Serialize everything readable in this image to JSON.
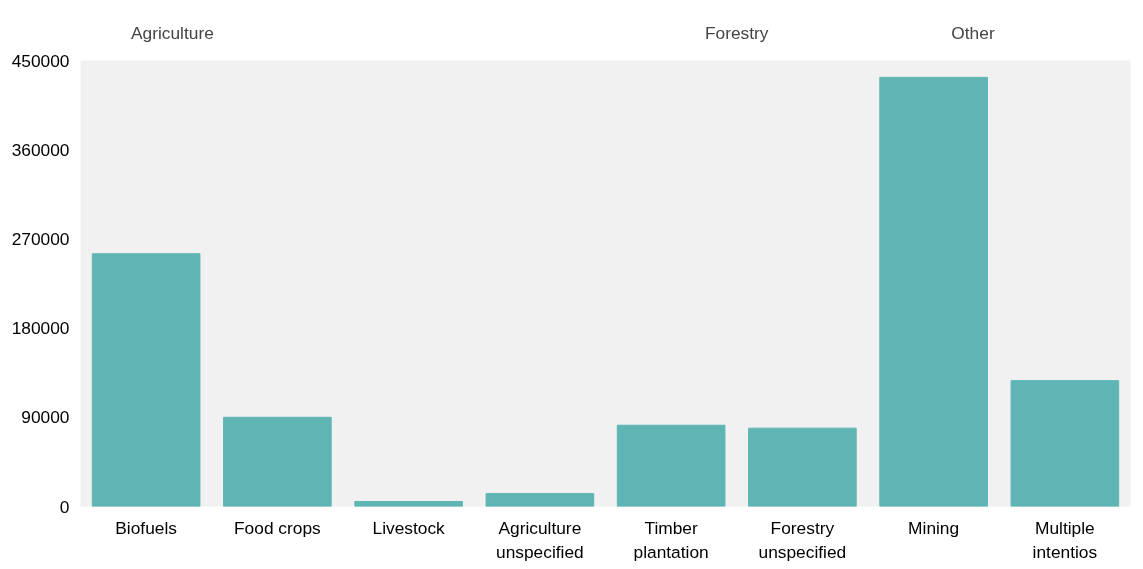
{
  "chart_data": {
    "type": "bar",
    "categories": [
      "Biofuels",
      "Food crops",
      "Livestock",
      "Agriculture unspecified",
      "Timber plantation",
      "Forestry unspecified",
      "Mining",
      "Multiple intentios"
    ],
    "values": [
      255000,
      90000,
      5000,
      13000,
      82000,
      79000,
      433000,
      127000
    ],
    "color": "#5fb5b4",
    "ylim": [
      0,
      450000
    ],
    "yticks": [
      0,
      90000,
      180000,
      270000,
      360000,
      450000
    ],
    "grid": false,
    "annotations": [
      "Agriculture",
      "Forestry",
      "Other"
    ]
  }
}
